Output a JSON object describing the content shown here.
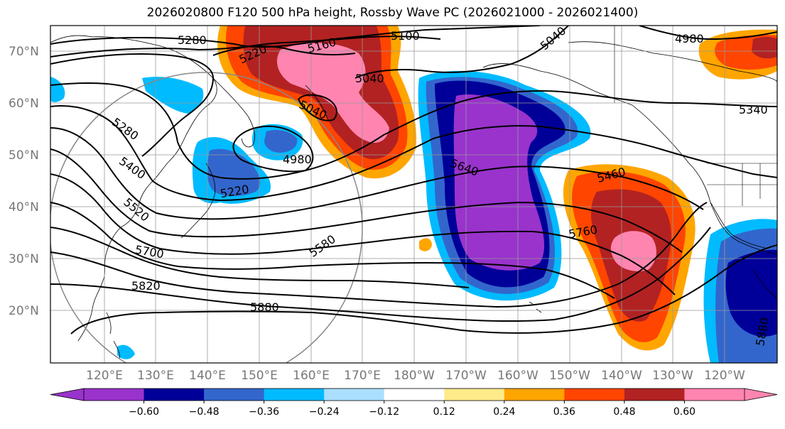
{
  "title": "2026020800 F120 500 hPa height, Rossby Wave PC (2026021000 - 2026021400)",
  "lat_labels": [
    "70°N",
    "60°N",
    "50°N",
    "40°N",
    "30°N",
    "20°N"
  ],
  "lon_labels": [
    "120°E",
    "130°E",
    "140°E",
    "150°E",
    "160°E",
    "170°E",
    "180°W",
    "170°W",
    "160°W",
    "150°W",
    "140°W",
    "130°W",
    "120°W"
  ],
  "contour_labels": [
    "5280",
    "5220",
    "5160",
    "5100",
    "5040",
    "4980",
    "5340",
    "5040",
    "5040",
    "4980",
    "5460",
    "5640",
    "5220",
    "5280",
    "5400",
    "5520",
    "5580",
    "5760",
    "5700",
    "5820",
    "5880",
    "5880"
  ],
  "colorbar": {
    "colors": [
      "#9933cc",
      "#000099",
      "#3366cc",
      "#00bbff",
      "#aadfff",
      "#ffffff",
      "#ffeb8a",
      "#ffa500",
      "#ff4500",
      "#b22222",
      "#ff85b0"
    ],
    "ticks": [
      "−0.60",
      "−0.48",
      "−0.36",
      "−0.24",
      "−0.12",
      "0.12",
      "0.24",
      "0.36",
      "0.48",
      "0.60"
    ],
    "min_color": "#9933cc",
    "max_color": "#ff85b0"
  }
}
